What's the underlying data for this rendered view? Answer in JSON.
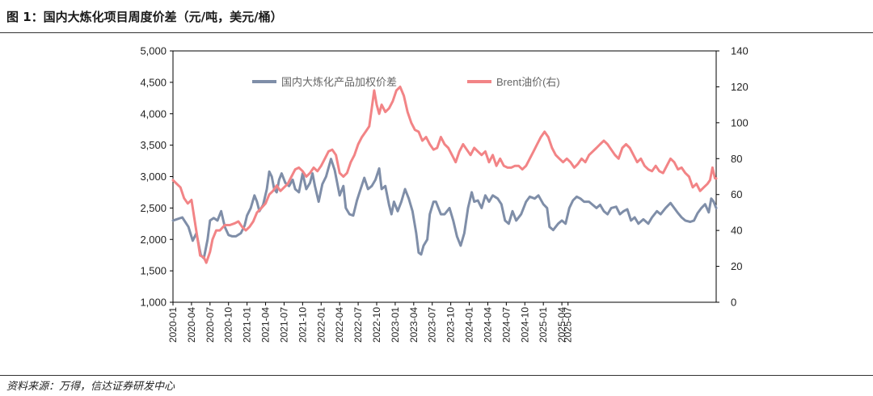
{
  "figure": {
    "title": "图 1：国内大炼化项目周度价差（元/吨，美元/桶）",
    "source": "资料来源：万得，信达证券研发中心"
  },
  "colors": {
    "spread": "#7f8ea8",
    "brent": "#f28486",
    "axis": "#000000"
  },
  "chart_data": {
    "type": "line",
    "title": "",
    "x": [
      "2020-01",
      "2020-04",
      "2020-07",
      "2020-10",
      "2021-01",
      "2021-04",
      "2021-07",
      "2021-10",
      "2022-01",
      "2022-04",
      "2022-07",
      "2022-10",
      "2023-01",
      "2023-04",
      "2023-07",
      "2023-10",
      "2024-01",
      "2024-04",
      "2024-07",
      "2024-10",
      "2025-01",
      "2025-04",
      "2025-07"
    ],
    "y_left": {
      "min": 1000,
      "max": 5000,
      "ticks": [
        "1,000",
        "1,500",
        "2,000",
        "2,500",
        "3,000",
        "3,500",
        "4,000",
        "4,500",
        "5,000"
      ]
    },
    "y_right": {
      "min": 0,
      "max": 140,
      "ticks": [
        "0",
        "20",
        "40",
        "60",
        "80",
        "100",
        "120",
        "140"
      ]
    },
    "legend_position": "top-center",
    "series": [
      {
        "name": "国内大炼化产品加权价差",
        "axis": "left",
        "color": "#7f8ea8",
        "points": [
          [
            0,
            2300
          ],
          [
            1.5,
            2350
          ],
          [
            2.5,
            2200
          ],
          [
            3.2,
            1980
          ],
          [
            3.8,
            2100
          ],
          [
            4.5,
            1750
          ],
          [
            5,
            1700
          ],
          [
            5.6,
            2000
          ],
          [
            6,
            2300
          ],
          [
            6.6,
            2340
          ],
          [
            7.2,
            2300
          ],
          [
            7.8,
            2450
          ],
          [
            8.4,
            2200
          ],
          [
            9,
            2070
          ],
          [
            9.6,
            2050
          ],
          [
            10.2,
            2050
          ],
          [
            11,
            2100
          ],
          [
            11.6,
            2220
          ],
          [
            12,
            2380
          ],
          [
            12.6,
            2500
          ],
          [
            13.2,
            2700
          ],
          [
            13.6,
            2600
          ],
          [
            14,
            2450
          ],
          [
            14.6,
            2550
          ],
          [
            15.2,
            2800
          ],
          [
            15.6,
            3080
          ],
          [
            16,
            3000
          ],
          [
            16.4,
            2800
          ],
          [
            16.8,
            2750
          ],
          [
            17.2,
            2950
          ],
          [
            17.6,
            3050
          ],
          [
            18.2,
            2900
          ],
          [
            18.8,
            2850
          ],
          [
            19.4,
            2950
          ],
          [
            19.8,
            2800
          ],
          [
            20.4,
            2750
          ],
          [
            21,
            3050
          ],
          [
            21.6,
            2800
          ],
          [
            22.2,
            2900
          ],
          [
            22.6,
            3050
          ],
          [
            23,
            2850
          ],
          [
            23.6,
            2600
          ],
          [
            24.2,
            2880
          ],
          [
            24.8,
            3000
          ],
          [
            25.6,
            3280
          ],
          [
            26.2,
            3100
          ],
          [
            27,
            2700
          ],
          [
            27.6,
            2850
          ],
          [
            28,
            2500
          ],
          [
            28.6,
            2400
          ],
          [
            29.2,
            2380
          ],
          [
            29.8,
            2620
          ],
          [
            30.4,
            2800
          ],
          [
            31,
            2980
          ],
          [
            31.6,
            2800
          ],
          [
            32.2,
            2850
          ],
          [
            32.8,
            2950
          ],
          [
            33.4,
            3130
          ],
          [
            33.8,
            2800
          ],
          [
            34.4,
            2850
          ],
          [
            35,
            2550
          ],
          [
            35.4,
            2400
          ],
          [
            35.8,
            2600
          ],
          [
            36.4,
            2450
          ],
          [
            37,
            2600
          ],
          [
            37.6,
            2800
          ],
          [
            38.2,
            2650
          ],
          [
            38.8,
            2450
          ],
          [
            39.4,
            2100
          ],
          [
            39.8,
            1790
          ],
          [
            40.2,
            1760
          ],
          [
            40.6,
            1900
          ],
          [
            41.2,
            2000
          ],
          [
            41.6,
            2400
          ],
          [
            42.2,
            2600
          ],
          [
            42.6,
            2600
          ],
          [
            43.4,
            2400
          ],
          [
            44,
            2400
          ],
          [
            44.8,
            2500
          ],
          [
            45.4,
            2300
          ],
          [
            46,
            2050
          ],
          [
            46.6,
            1900
          ],
          [
            47.2,
            2100
          ],
          [
            47.8,
            2500
          ],
          [
            48.4,
            2750
          ],
          [
            48.8,
            2600
          ],
          [
            49.4,
            2620
          ],
          [
            50,
            2500
          ],
          [
            50.6,
            2700
          ],
          [
            51.2,
            2600
          ],
          [
            51.8,
            2700
          ],
          [
            52.6,
            2650
          ],
          [
            53.2,
            2560
          ],
          [
            53.8,
            2300
          ],
          [
            54.4,
            2250
          ],
          [
            55,
            2450
          ],
          [
            55.6,
            2300
          ],
          [
            56.4,
            2400
          ],
          [
            57.2,
            2600
          ],
          [
            57.8,
            2680
          ],
          [
            58.6,
            2650
          ],
          [
            59.2,
            2700
          ],
          [
            60,
            2560
          ],
          [
            60.6,
            2500
          ],
          [
            61,
            2200
          ],
          [
            61.6,
            2150
          ],
          [
            62.4,
            2250
          ],
          [
            63,
            2300
          ],
          [
            63.6,
            2250
          ],
          [
            64.2,
            2500
          ],
          [
            64.8,
            2620
          ],
          [
            65.4,
            2680
          ],
          [
            66,
            2650
          ],
          [
            66.6,
            2600
          ],
          [
            67.4,
            2600
          ],
          [
            68,
            2550
          ],
          [
            68.6,
            2500
          ],
          [
            69.2,
            2550
          ],
          [
            69.8,
            2450
          ],
          [
            70.4,
            2400
          ],
          [
            71,
            2500
          ],
          [
            71.8,
            2520
          ],
          [
            72.4,
            2400
          ],
          [
            73,
            2450
          ],
          [
            73.6,
            2480
          ],
          [
            74.2,
            2300
          ],
          [
            74.8,
            2350
          ],
          [
            75.4,
            2250
          ],
          [
            76.2,
            2320
          ],
          [
            77,
            2250
          ],
          [
            77.6,
            2350
          ],
          [
            78.4,
            2450
          ],
          [
            79,
            2400
          ],
          [
            79.8,
            2500
          ],
          [
            80.6,
            2580
          ],
          [
            81.2,
            2500
          ],
          [
            81.8,
            2420
          ],
          [
            82.4,
            2350
          ],
          [
            83,
            2300
          ],
          [
            83.8,
            2280
          ],
          [
            84.4,
            2300
          ],
          [
            85,
            2420
          ],
          [
            85.6,
            2500
          ],
          [
            86.2,
            2560
          ],
          [
            86.8,
            2430
          ],
          [
            87.2,
            2650
          ],
          [
            87.6,
            2600
          ],
          [
            88,
            2500
          ]
        ]
      },
      {
        "name": "Brent油价(右)",
        "axis": "right",
        "color": "#f28486",
        "points": [
          [
            0,
            68
          ],
          [
            0.6,
            66
          ],
          [
            1.2,
            64
          ],
          [
            1.8,
            58
          ],
          [
            2.4,
            55
          ],
          [
            3,
            57
          ],
          [
            3.4,
            48
          ],
          [
            4,
            35
          ],
          [
            4.4,
            26
          ],
          [
            5,
            25
          ],
          [
            5.4,
            22
          ],
          [
            6,
            28
          ],
          [
            6.4,
            35
          ],
          [
            7,
            40
          ],
          [
            7.6,
            40
          ],
          [
            8.4,
            43
          ],
          [
            9.2,
            43
          ],
          [
            10,
            44
          ],
          [
            10.6,
            45
          ],
          [
            11.2,
            42
          ],
          [
            11.8,
            40
          ],
          [
            12.4,
            42
          ],
          [
            13,
            45
          ],
          [
            13.6,
            50
          ],
          [
            14.2,
            52
          ],
          [
            15,
            55
          ],
          [
            15.6,
            60
          ],
          [
            16.2,
            62
          ],
          [
            16.8,
            65
          ],
          [
            17.4,
            62
          ],
          [
            18,
            64
          ],
          [
            18.6,
            66
          ],
          [
            19.2,
            70
          ],
          [
            19.8,
            74
          ],
          [
            20.4,
            75
          ],
          [
            21,
            73
          ],
          [
            21.6,
            70
          ],
          [
            22.2,
            72
          ],
          [
            22.8,
            75
          ],
          [
            23.4,
            73
          ],
          [
            24,
            76
          ],
          [
            24.6,
            80
          ],
          [
            25.2,
            84
          ],
          [
            25.8,
            85
          ],
          [
            26.4,
            82
          ],
          [
            27,
            72
          ],
          [
            27.6,
            70
          ],
          [
            28.2,
            72
          ],
          [
            28.8,
            78
          ],
          [
            29.4,
            82
          ],
          [
            30,
            88
          ],
          [
            30.6,
            92
          ],
          [
            31.2,
            95
          ],
          [
            31.8,
            98
          ],
          [
            32.2,
            108
          ],
          [
            32.6,
            118
          ],
          [
            33,
            110
          ],
          [
            33.4,
            105
          ],
          [
            33.8,
            110
          ],
          [
            34.4,
            106
          ],
          [
            35,
            108
          ],
          [
            35.6,
            112
          ],
          [
            36.2,
            118
          ],
          [
            36.8,
            120
          ],
          [
            37.4,
            115
          ],
          [
            38,
            106
          ],
          [
            38.6,
            100
          ],
          [
            39.2,
            96
          ],
          [
            39.8,
            95
          ],
          [
            40.4,
            90
          ],
          [
            41,
            92
          ],
          [
            41.6,
            88
          ],
          [
            42.2,
            85
          ],
          [
            42.8,
            86
          ],
          [
            43.4,
            92
          ],
          [
            44,
            88
          ],
          [
            44.6,
            86
          ],
          [
            45.2,
            82
          ],
          [
            45.8,
            78
          ],
          [
            46.4,
            84
          ],
          [
            47,
            88
          ],
          [
            47.6,
            85
          ],
          [
            48.2,
            82
          ],
          [
            48.8,
            86
          ],
          [
            49.4,
            84
          ],
          [
            50,
            82
          ],
          [
            50.6,
            84
          ],
          [
            51.2,
            78
          ],
          [
            51.8,
            82
          ],
          [
            52.4,
            76
          ],
          [
            53,
            80
          ],
          [
            53.6,
            76
          ],
          [
            54.2,
            75
          ],
          [
            54.8,
            75
          ],
          [
            55.4,
            76
          ],
          [
            56,
            76
          ],
          [
            56.6,
            74
          ],
          [
            57.2,
            76
          ],
          [
            57.8,
            80
          ],
          [
            58.4,
            84
          ],
          [
            59,
            88
          ],
          [
            59.6,
            92
          ],
          [
            60.2,
            95
          ],
          [
            60.8,
            92
          ],
          [
            61.4,
            86
          ],
          [
            62,
            82
          ],
          [
            62.6,
            80
          ],
          [
            63.2,
            78
          ],
          [
            63.8,
            80
          ],
          [
            64.4,
            78
          ],
          [
            65,
            75
          ],
          [
            65.6,
            77
          ],
          [
            66.2,
            80
          ],
          [
            66.8,
            78
          ],
          [
            67.4,
            82
          ],
          [
            68,
            84
          ],
          [
            68.6,
            86
          ],
          [
            69.2,
            88
          ],
          [
            69.8,
            90
          ],
          [
            70.4,
            88
          ],
          [
            71,
            85
          ],
          [
            71.6,
            82
          ],
          [
            72.2,
            80
          ],
          [
            72.8,
            86
          ],
          [
            73.4,
            88
          ],
          [
            74,
            86
          ],
          [
            74.6,
            82
          ],
          [
            75.2,
            78
          ],
          [
            75.8,
            80
          ],
          [
            76.4,
            76
          ],
          [
            77,
            74
          ],
          [
            77.6,
            73
          ],
          [
            78.2,
            76
          ],
          [
            78.8,
            73
          ],
          [
            79.4,
            72
          ],
          [
            80,
            76
          ],
          [
            80.6,
            80
          ],
          [
            81.2,
            78
          ],
          [
            81.8,
            74
          ],
          [
            82.4,
            75
          ],
          [
            83,
            72
          ],
          [
            83.6,
            70
          ],
          [
            84.2,
            64
          ],
          [
            84.8,
            66
          ],
          [
            85.4,
            62
          ],
          [
            86,
            64
          ],
          [
            86.6,
            66
          ],
          [
            87,
            68
          ],
          [
            87.4,
            75
          ],
          [
            87.8,
            69
          ],
          [
            88,
            69
          ]
        ]
      }
    ]
  }
}
